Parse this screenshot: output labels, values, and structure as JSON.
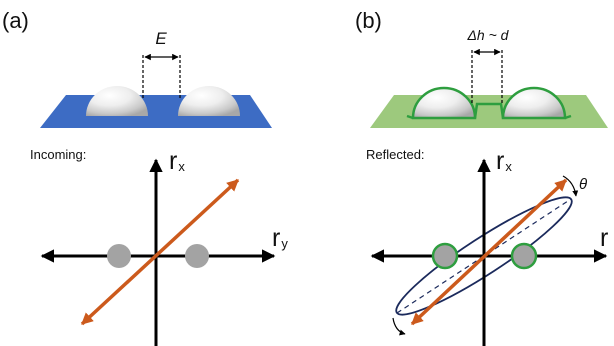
{
  "panels": [
    {
      "id": "a",
      "label": "(a)",
      "gap_label": "E",
      "caption": "Incoming:",
      "axis_vertical": "r",
      "axis_vertical_sub": "x",
      "axis_horizontal": "r",
      "axis_horizontal_sub": "y",
      "surface_color": "#3d6cc4",
      "outline_color": null
    },
    {
      "id": "b",
      "label": "(b)",
      "gap_label": "Δh ~ d",
      "caption": "Reflected:",
      "axis_vertical": "r",
      "axis_vertical_sub": "x",
      "axis_horizontal": "r",
      "angle_label": "θ",
      "surface_color": "#9dc97d",
      "outline_color": "#2e9e3f"
    }
  ],
  "colors": {
    "ray": "#cc5a1c",
    "dot_fill": "#a3a3a3",
    "ellipse": "#1b2a5c",
    "axis": "#000000"
  }
}
